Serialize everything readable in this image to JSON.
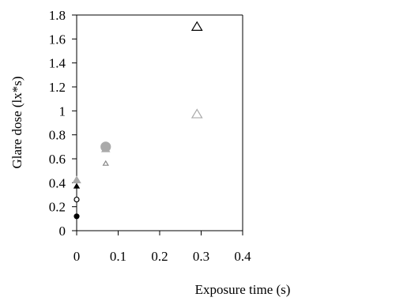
{
  "chart_data": {
    "type": "scatter",
    "title": "",
    "xlabel": "Exposure time (s)",
    "ylabel": "Glare dose (lx*s)",
    "xlim": [
      0,
      0.4
    ],
    "ylim": [
      0,
      1.8
    ],
    "x_ticks": [
      "0",
      "0.1",
      "0.2",
      "0.3",
      "0.4"
    ],
    "y_ticks": [
      "0",
      "0.2",
      "0.4",
      "0.6",
      "0.8",
      "1",
      "1.2",
      "1.4",
      "1.6",
      "1.8"
    ],
    "grid": false,
    "legend": "none",
    "series": [
      {
        "marker": "triangle-open",
        "color": "#000000",
        "size": "large",
        "points": [
          {
            "x": 0.29,
            "y": 1.7
          }
        ]
      },
      {
        "marker": "triangle-open",
        "color": "#aaaaaa",
        "size": "large",
        "points": [
          {
            "x": 0.29,
            "y": 0.97
          }
        ]
      },
      {
        "marker": "triangle-filled",
        "color": "#aaaaaa",
        "size": "medium",
        "points": [
          {
            "x": 0.0,
            "y": 0.42
          },
          {
            "x": 0.07,
            "y": 0.68
          }
        ]
      },
      {
        "marker": "circle-filled",
        "color": "#aaaaaa",
        "size": "large",
        "points": [
          {
            "x": 0.07,
            "y": 0.7
          }
        ]
      },
      {
        "marker": "triangle-open",
        "color": "#888888",
        "size": "small",
        "points": [
          {
            "x": 0.07,
            "y": 0.56
          }
        ]
      },
      {
        "marker": "triangle-filled",
        "color": "#000000",
        "size": "small",
        "points": [
          {
            "x": 0.0,
            "y": 0.37
          }
        ]
      },
      {
        "marker": "circle-open",
        "color": "#000000",
        "size": "small",
        "points": [
          {
            "x": 0.0,
            "y": 0.26
          }
        ]
      },
      {
        "marker": "circle-filled",
        "color": "#000000",
        "size": "small",
        "points": [
          {
            "x": 0.0,
            "y": 0.12
          }
        ]
      }
    ]
  }
}
